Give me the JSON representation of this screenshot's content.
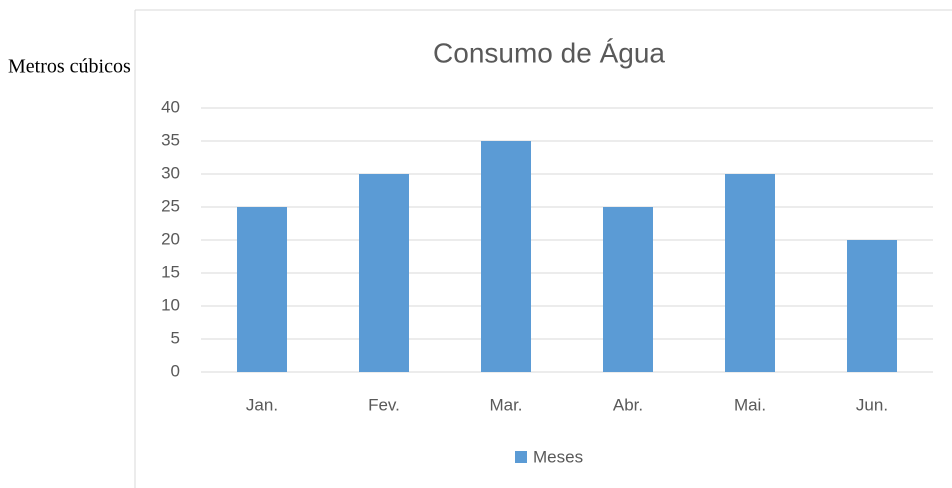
{
  "chart_data": {
    "type": "bar",
    "title": "Consumo de Água",
    "y_label": "Metros cúbicos",
    "categories": [
      "Jan.",
      "Fev.",
      "Mar.",
      "Abr.",
      "Mai.",
      "Jun."
    ],
    "values": [
      25,
      30,
      35,
      25,
      30,
      20
    ],
    "color": "#5b9bd5",
    "ylim": [
      0,
      40
    ],
    "yticks": [
      0,
      5,
      10,
      15,
      20,
      25,
      30,
      35,
      40
    ],
    "grid": true,
    "legend": {
      "labels": [
        "Meses"
      ],
      "position": "bottom"
    }
  }
}
